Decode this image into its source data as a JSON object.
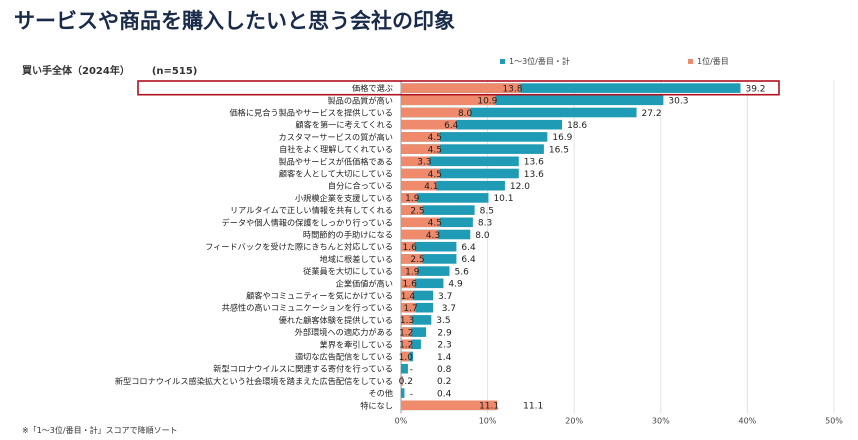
{
  "page": {
    "title": "サービスや商品を購入したいと思う会社の印象",
    "subtitle": "買い手全体（2024年）",
    "sample": "(n=515)",
    "footnote": "※「1～3位/番目・計」スコアで降順ソート"
  },
  "chart_data": {
    "type": "bar",
    "orientation": "horizontal",
    "xlim": [
      0,
      50
    ],
    "xticks": [
      "0%",
      "10%",
      "20%",
      "30%",
      "40%",
      "50%"
    ],
    "grid": true,
    "legend_position": "top-right",
    "categories": [
      "価格で選ぶ",
      "製品の品質が高い",
      "価格に見合う製品やサービスを提供している",
      "顧客を第一に考えてくれる",
      "カスタマーサービスの質が高い",
      "自社をよく理解してくれている",
      "製品やサービスが低価格である",
      "顧客を人として大切にしている",
      "自分に合っている",
      "小規模企業を支援している",
      "リアルタイムで正しい情報を共有してくれる",
      "データや個人情報の保護をしっかり行っている",
      "時間節約の手助けになる",
      "フィードバックを受けた際にきちんと対応している",
      "地域に根差している",
      "従業員を大切にしている",
      "企業価値が高い",
      "顧客やコミュニティーを気にかけている",
      "共感性の高いコミュニケーションを行っている",
      "優れた顧客体験を提供している",
      "外部環境への適応力がある",
      "業界を牽引している",
      "適切な広告配信をしている",
      "新型コロナウイルスに関連する寄付を行っている",
      "新型コロナウイルス感染拡大という社会環境を踏まえた広告配信をしている",
      "その他",
      "特になし"
    ],
    "series": [
      {
        "name": "1～3位/番目・計",
        "color": "#1f9bb5",
        "values": [
          39.2,
          30.3,
          27.2,
          18.6,
          16.9,
          16.5,
          13.6,
          13.6,
          12.0,
          10.1,
          8.5,
          8.3,
          8.0,
          6.4,
          6.4,
          5.6,
          4.9,
          3.7,
          3.7,
          3.5,
          2.9,
          2.3,
          1.4,
          0.8,
          0.2,
          0.4,
          11.1
        ],
        "labels": [
          "39.2",
          "30.3",
          "27.2",
          "18.6",
          "16.9",
          "16.5",
          "13.6",
          "13.6",
          "12.0",
          "10.1",
          "8.5",
          "8.3",
          "8.0",
          "6.4",
          "6.4",
          "5.6",
          "4.9",
          "3.7",
          "3.7",
          "3.5",
          "2.9",
          "2.3",
          "1.4",
          "0.8",
          "0.2",
          "0.4",
          "11.1"
        ]
      },
      {
        "name": "1位/番目",
        "color": "#f08a6c",
        "values": [
          13.8,
          10.9,
          8.0,
          6.4,
          4.5,
          4.5,
          3.3,
          4.5,
          4.1,
          1.9,
          2.5,
          4.5,
          4.3,
          1.6,
          2.5,
          1.9,
          1.6,
          1.4,
          1.7,
          1.3,
          1.2,
          1.2,
          1.0,
          0,
          0.2,
          0,
          11.1
        ],
        "labels": [
          "13.8",
          "10.9",
          "8.0",
          "6.4",
          "4.5",
          "4.5",
          "3.3",
          "4.5",
          "4.1",
          "1.9",
          "2.5",
          "4.5",
          "4.3",
          "1.6",
          "2.5",
          "1.9",
          "1.6",
          "1.4",
          "1.7",
          "1.3",
          "1.2",
          "1.2",
          "1.0",
          "-",
          "0.2",
          "-",
          "11.1"
        ]
      }
    ],
    "highlight_category": "価格で選ぶ",
    "highlight_color": "#b0121f"
  }
}
